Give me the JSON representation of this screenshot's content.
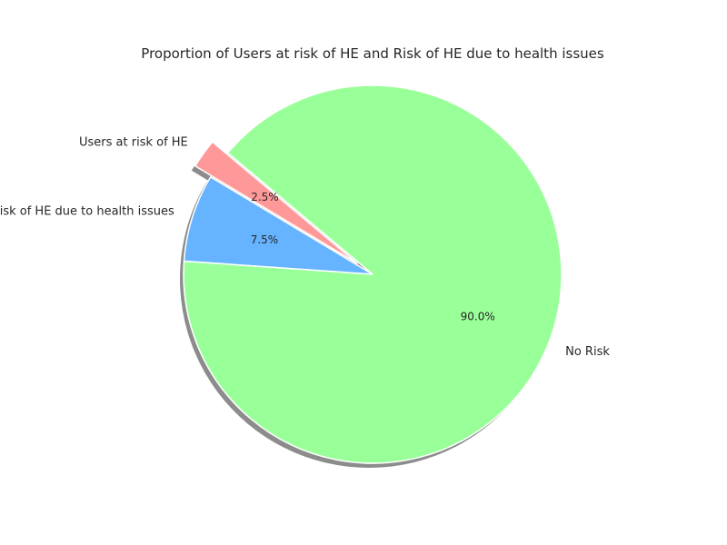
{
  "chart_data": {
    "type": "pie",
    "title": "Proportion of Users at risk of HE and Risk of HE due to health issues",
    "slices": [
      {
        "label": "Users at risk of HE",
        "value": 2.5,
        "pct_label": "2.5%",
        "color": "#ff9999",
        "exploded": true
      },
      {
        "label": "Risk of HE due to health issues",
        "value": 7.5,
        "pct_label": "7.5%",
        "color": "#66b3ff",
        "exploded": false
      },
      {
        "label": "No Risk",
        "value": 90.0,
        "pct_label": "90.0%",
        "color": "#99ff99",
        "exploded": false
      }
    ],
    "start_angle": 140,
    "shadow": true
  }
}
